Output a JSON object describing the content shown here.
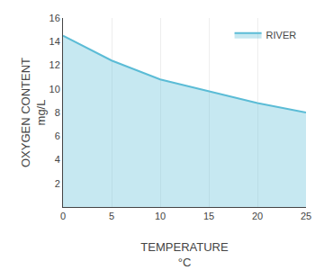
{
  "chart_data": {
    "type": "area",
    "x": [
      0,
      5,
      10,
      15,
      20,
      25
    ],
    "series": [
      {
        "name": "RIVER",
        "color": "#5bbcd6",
        "values": [
          14.5,
          12.4,
          10.8,
          9.8,
          8.8,
          8.0
        ]
      }
    ],
    "xlabel": "TEMPERATURE\n°C",
    "ylabel": "OXYGEN CONTENT\nmg/L",
    "xlim": [
      0,
      25
    ],
    "ylim": [
      0,
      16
    ],
    "xticks": [
      0,
      5,
      10,
      15,
      20,
      25
    ],
    "yticks": [
      2,
      4,
      6,
      8,
      10,
      12,
      14,
      16
    ],
    "grid": "x",
    "legend": "upper right"
  }
}
